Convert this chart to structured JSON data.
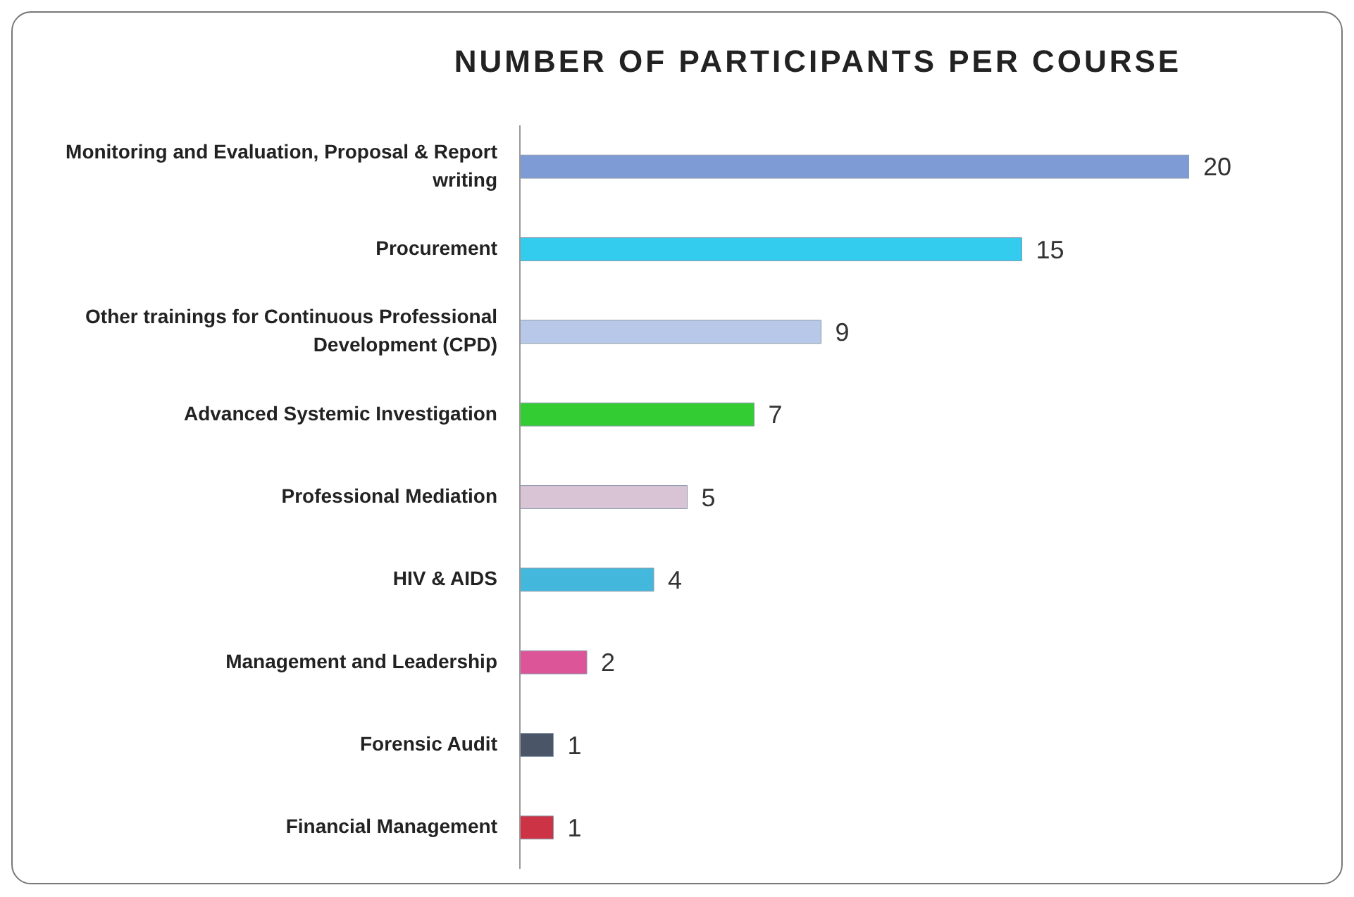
{
  "chart_data": {
    "type": "bar",
    "orientation": "horizontal",
    "title": "NUMBER OF PARTICIPANTS PER COURSE",
    "categories": [
      "Monitoring and Evaluation, Proposal & Report writing",
      "Procurement",
      "Other trainings for Continuous Professional Development (CPD)",
      "Advanced Systemic Investigation",
      "Professional Mediation",
      "HIV & AIDS",
      "Management and Leadership",
      "Forensic Audit",
      "Financial Management"
    ],
    "values": [
      20,
      15,
      9,
      7,
      5,
      4,
      2,
      1,
      1
    ],
    "colors": [
      "#7f9bd6",
      "#33ccee",
      "#b8c8e8",
      "#33cc33",
      "#d8c4d4",
      "#44b8dc",
      "#dd5599",
      "#4a5568",
      "#cc3344"
    ],
    "data_labels": true
  }
}
